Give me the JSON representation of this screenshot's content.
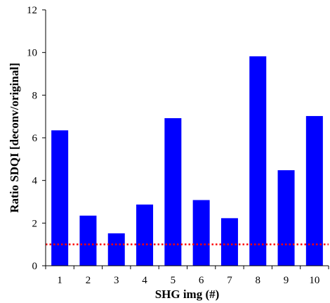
{
  "chart_data": {
    "type": "bar",
    "title": "",
    "xlabel": "SHG img (#)",
    "ylabel": "Ratio SDQI [deconv/original]",
    "categories": [
      "1",
      "2",
      "3",
      "4",
      "5",
      "6",
      "7",
      "8",
      "9",
      "10"
    ],
    "values": [
      6.35,
      2.35,
      1.52,
      2.87,
      6.92,
      3.08,
      2.23,
      9.82,
      4.48,
      7.02
    ],
    "ylim": [
      0,
      12
    ],
    "yticks": [
      "0",
      "2",
      "4",
      "6",
      "8",
      "10",
      "12"
    ],
    "grid": false,
    "legend": "none",
    "reference_line": {
      "y": 1,
      "style": "dotted",
      "color": "#ff0000"
    },
    "colors": {
      "bar": "#0000ff",
      "axis": "#000000",
      "reference": "#ff0000"
    }
  }
}
